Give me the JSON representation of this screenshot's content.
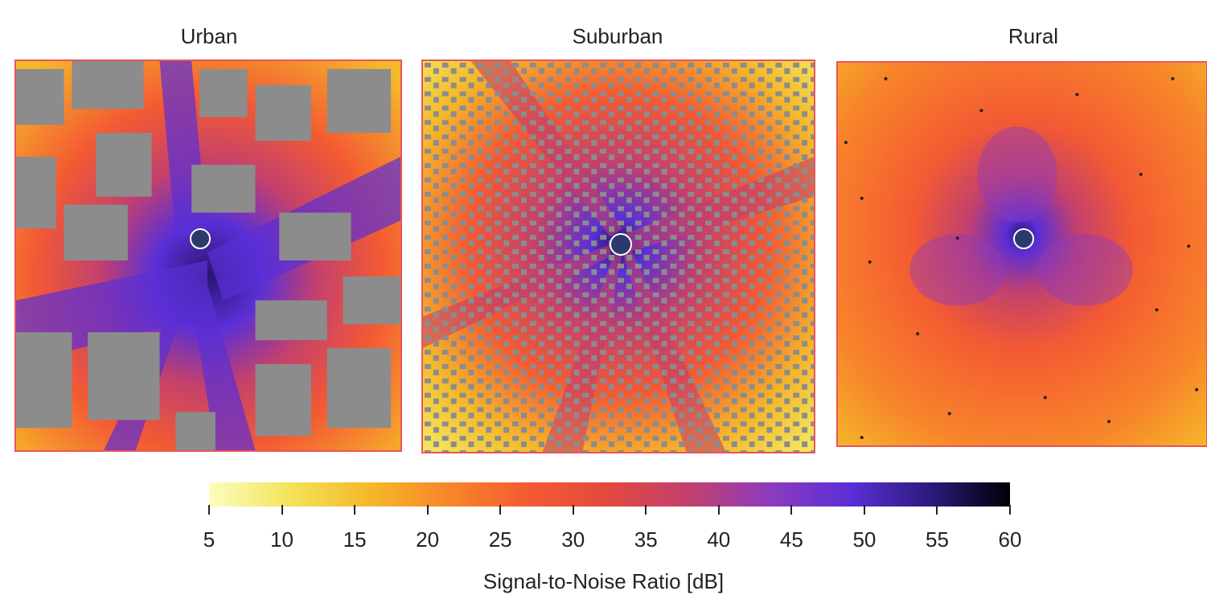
{
  "panels": [
    {
      "title": "Urban"
    },
    {
      "title": "Suburban"
    },
    {
      "title": "Rural"
    }
  ],
  "colorbar": {
    "label": "Signal-to-Noise Ratio [dB]",
    "min": 5,
    "max": 60,
    "ticks": [
      "5",
      "10",
      "15",
      "20",
      "25",
      "30",
      "35",
      "40",
      "45",
      "50",
      "55",
      "60"
    ],
    "colormap": [
      "#fcfdbf",
      "#f3e45a",
      "#f5b82a",
      "#f7862a",
      "#f45a32",
      "#e2483f",
      "#c2406e",
      "#8d3bbd",
      "#5a2fd6",
      "#2d1a7e",
      "#000004"
    ]
  },
  "colors": {
    "building": "#8c8c8c",
    "panel_border": "#e8555a",
    "station_marker": "#2b3a6b"
  },
  "icons": {
    "station": "base-station-icon"
  }
}
